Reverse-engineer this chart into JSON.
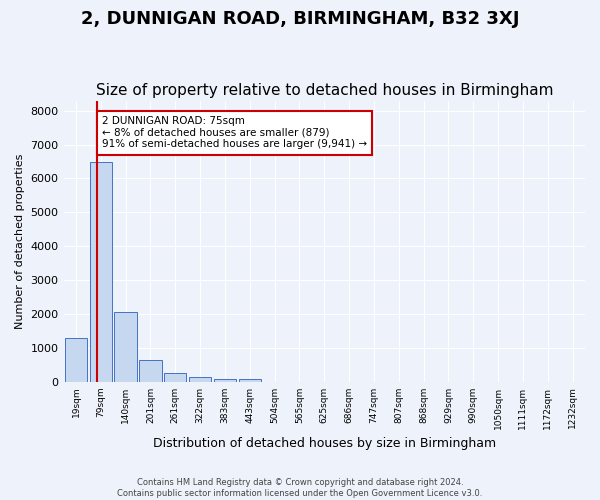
{
  "title": "2, DUNNIGAN ROAD, BIRMINGHAM, B32 3XJ",
  "subtitle": "Size of property relative to detached houses in Birmingham",
  "xlabel": "Distribution of detached houses by size in Birmingham",
  "ylabel": "Number of detached properties",
  "bin_labels": [
    "19sqm",
    "79sqm",
    "140sqm",
    "201sqm",
    "261sqm",
    "322sqm",
    "383sqm",
    "443sqm",
    "504sqm",
    "565sqm",
    "625sqm",
    "686sqm",
    "747sqm",
    "807sqm",
    "868sqm",
    "929sqm",
    "990sqm",
    "1050sqm",
    "1111sqm",
    "1172sqm",
    "1232sqm"
  ],
  "bar_heights": [
    1280,
    6500,
    2070,
    630,
    250,
    130,
    90,
    90,
    0,
    0,
    0,
    0,
    0,
    0,
    0,
    0,
    0,
    0,
    0,
    0,
    0
  ],
  "bar_color": "#c5d8f0",
  "bar_edge_color": "#4472c4",
  "red_line_x": 0.85,
  "annotation_title": "2 DUNNIGAN ROAD: 75sqm",
  "annotation_line1": "← 8% of detached houses are smaller (879)",
  "annotation_line2": "91% of semi-detached houses are larger (9,941) →",
  "ylim": [
    0,
    8300
  ],
  "yticks": [
    0,
    1000,
    2000,
    3000,
    4000,
    5000,
    6000,
    7000,
    8000
  ],
  "footer1": "Contains HM Land Registry data © Crown copyright and database right 2024.",
  "footer2": "Contains public sector information licensed under the Open Government Licence v3.0.",
  "bg_color": "#eef2fa",
  "plot_bg_color": "#eef2fa",
  "grid_color": "#ffffff",
  "title_fontsize": 13,
  "subtitle_fontsize": 11,
  "annotation_box_color": "#ffffff",
  "annotation_box_edge": "#cc0000"
}
